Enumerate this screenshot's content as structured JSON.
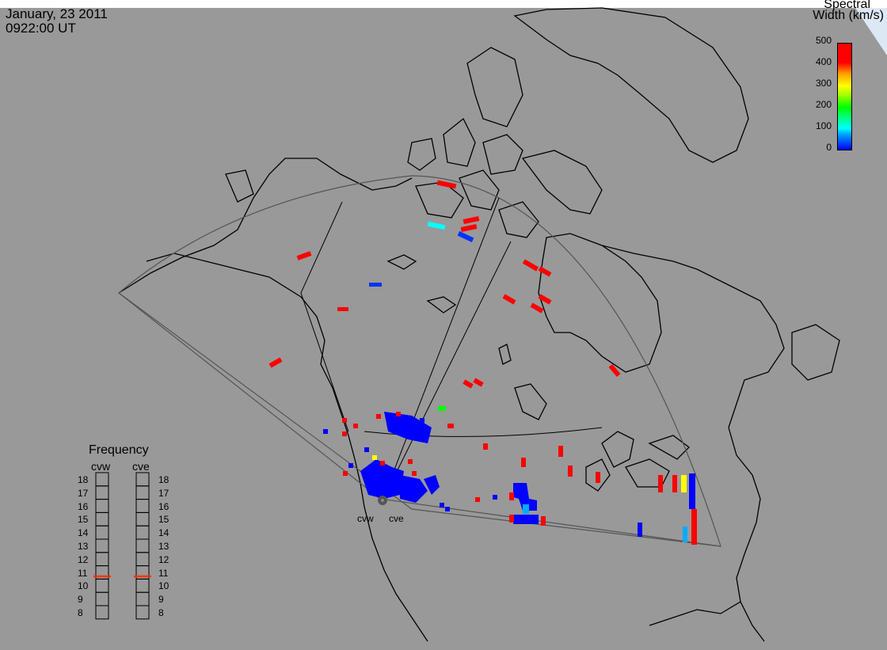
{
  "header": {
    "date": "January, 23 2011",
    "time": "0922:00 UT"
  },
  "legend": {
    "title_line1": "Spectral",
    "title_line2": "Width (km/s)",
    "ticks": [
      "500",
      "400",
      "300",
      "200",
      "100",
      "0"
    ],
    "colors": {
      "low": "#0000ff",
      "mid_low": "#00ffff",
      "mid": "#00ff00",
      "mid_high": "#ffff00",
      "high": "#ff0000"
    }
  },
  "frequency_panel": {
    "title": "Frequency",
    "radars": [
      "cvw",
      "cve"
    ],
    "scale": [
      "18",
      "17",
      "16",
      "15",
      "14",
      "13",
      "12",
      "11",
      "10",
      "9",
      "8"
    ],
    "indicator_color": "#ff3300"
  },
  "map": {
    "background": "#999999",
    "site_labels": [
      "cvw",
      "cve"
    ]
  }
}
